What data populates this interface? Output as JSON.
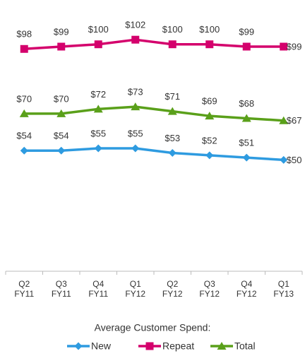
{
  "chart_data": {
    "type": "line",
    "categories": [
      "Q2\nFY11",
      "Q3\nFY11",
      "Q4\nFY11",
      "Q1\nFY12",
      "Q2\nFY12",
      "Q3\nFY12",
      "Q4\nFY12",
      "Q1\nFY13"
    ],
    "series": [
      {
        "name": "New",
        "color": "#2e9be0",
        "marker": "diamond",
        "values": [
          54,
          54,
          55,
          55,
          53,
          52,
          51,
          50
        ],
        "value_labels": [
          "$54",
          "$54",
          "$55",
          "$55",
          "$53",
          "$52",
          "$51",
          "$50"
        ]
      },
      {
        "name": "Repeat",
        "color": "#d4006c",
        "marker": "square",
        "values": [
          98,
          99,
          100,
          102,
          100,
          100,
          99,
          99
        ],
        "value_labels": [
          "$98",
          "$99",
          "$100",
          "$102",
          "$100",
          "$100",
          "$99",
          "$99"
        ]
      },
      {
        "name": "Total",
        "color": "#5aa01a",
        "marker": "triangle",
        "values": [
          70,
          70,
          72,
          73,
          71,
          69,
          68,
          67
        ],
        "value_labels": [
          "$70",
          "$70",
          "$72",
          "$73",
          "$71",
          "$69",
          "$68",
          "$67"
        ]
      }
    ],
    "ylim": [
      0,
      110
    ],
    "legend_title": "Average Customer Spend:",
    "legend": "bottom"
  }
}
